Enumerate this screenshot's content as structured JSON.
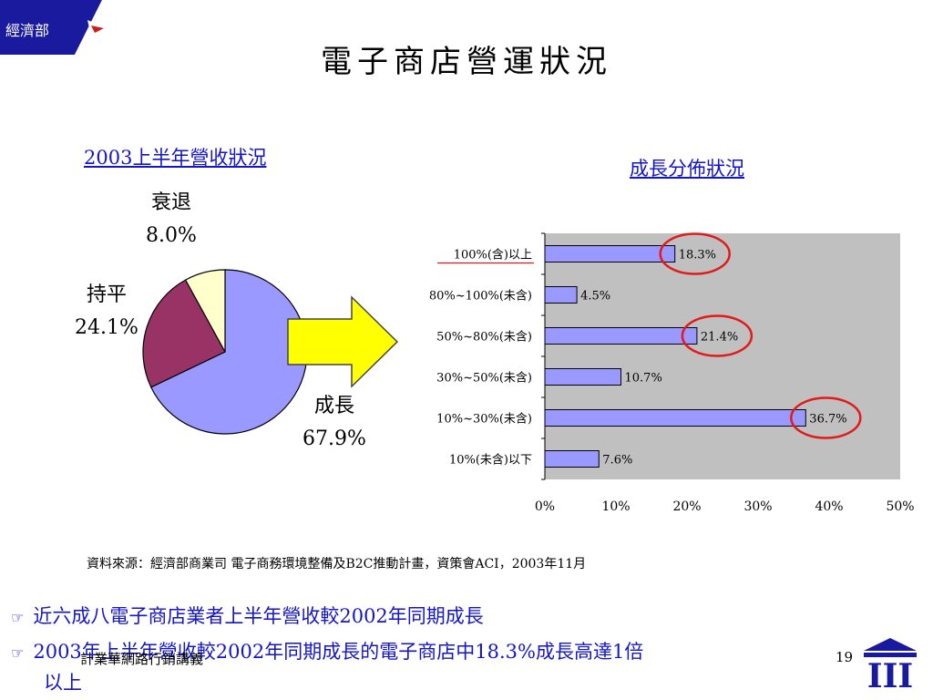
{
  "header": {
    "ministry": "經濟部",
    "title": "電子商店營運狀況"
  },
  "pie": {
    "title": "2003上半年營收狀況",
    "slices": [
      {
        "label": "成長",
        "percent_label": "67.9%",
        "value": 67.9,
        "color": "#9999ff"
      },
      {
        "label": "持平",
        "percent_label": "24.1%",
        "value": 24.1,
        "color": "#993366"
      },
      {
        "label": "衰退",
        "percent_label": "8.0%",
        "value": 8.0,
        "color": "#ffffcc"
      }
    ]
  },
  "chart_data": {
    "type": "bar",
    "title": "成長分佈狀況",
    "categories": [
      "100%(含)以上",
      "80%~100%(未含)",
      "50%~80%(未含)",
      "30%~50%(未含)",
      "10%~30%(未含)",
      "10%(未含)以下"
    ],
    "values": [
      18.3,
      4.5,
      21.4,
      10.7,
      36.7,
      7.6
    ],
    "value_labels": [
      "18.3%",
      "4.5%",
      "21.4%",
      "10.7%",
      "36.7%",
      "7.6%"
    ],
    "x_ticks": [
      "0%",
      "10%",
      "20%",
      "30%",
      "40%",
      "50%"
    ],
    "xlim": [
      0,
      50
    ],
    "bar_color": "#9999ff",
    "plot_background": "#c0c0c0",
    "highlight_color": "#e11a1a",
    "highlighted": [
      "100%(含)以上",
      "50%~80%(未含)",
      "10%~30%(未含)"
    ]
  },
  "source_note": "資料來源：經濟部商業司  電子商務環境整備及B2C推動計畫，資策會ACI，2003年11月",
  "bullets": [
    "近六成八電子商店業者上半年營收較2002年同期成長",
    "2003年上半年營收較2002年同期成長的電子商店中18.3%成長高達1倍",
    "以上"
  ],
  "footer": {
    "course": "計業華網路行銷講義",
    "page_number": "19",
    "logo_text": "III"
  },
  "colors": {
    "header_blue": "#1a1a9e",
    "link_blue": "#1515c8",
    "arrow_fill": "#ffff00"
  }
}
